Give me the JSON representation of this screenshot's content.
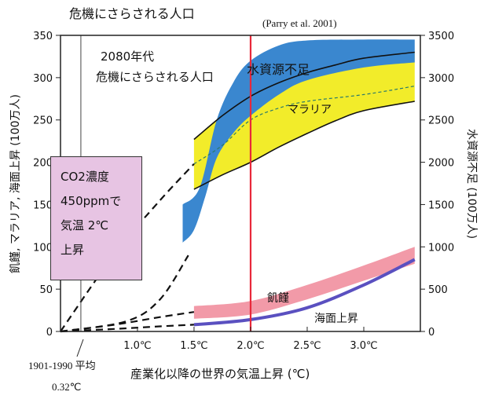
{
  "title": "危機にさらされる人口",
  "source": "(Parry et al. 2001)",
  "note_2080": [
    "2080年代",
    "危機にさらされる人口"
  ],
  "box": [
    "CO2濃度",
    "450ppmで",
    "気温 2℃",
    "上昇"
  ],
  "ylabel_left": "飢饉, マラリア, 海面上昇 (100万人)",
  "ylabel_right": "水資源不足 (100万人)",
  "xlabel": "産業化以降の世界の気温上昇 (℃)",
  "baseline_label": [
    "1901-1990 平均",
    "0.32℃"
  ],
  "colors": {
    "water": "#3a87cf",
    "malaria": "#f2ec2a",
    "hunger": "#f29aa8",
    "sea": "#5a50c0",
    "red_line": "#e8283a"
  },
  "chart_data": {
    "type": "area",
    "x_ticks": [
      "1.0℃",
      "1.5℃",
      "2.0℃",
      "2.5℃",
      "3.0℃"
    ],
    "x_tick_values": [
      1.0,
      1.5,
      2.0,
      2.5,
      3.0
    ],
    "y_left_ticks": [
      "0",
      "50",
      "100",
      "150",
      "200",
      "250",
      "300",
      "350"
    ],
    "y_right_ticks": [
      "0",
      "500",
      "1000",
      "1500",
      "2000",
      "2500",
      "3000",
      "3500"
    ],
    "xlim": [
      0.32,
      3.5
    ],
    "ylim_left": [
      0,
      350
    ],
    "ylim_right": [
      0,
      3500
    ],
    "vertical_lines": [
      0.5,
      2.0
    ],
    "series": [
      {
        "name": "水資源不足",
        "axis": "right",
        "upper": [
          [
            1.4,
            1500
          ],
          [
            1.55,
            1700
          ],
          [
            1.7,
            2500
          ],
          [
            1.85,
            2950
          ],
          [
            2.0,
            3200
          ],
          [
            2.25,
            3380
          ],
          [
            2.5,
            3440
          ],
          [
            3.0,
            3450
          ],
          [
            3.45,
            3450
          ]
        ],
        "lower": [
          [
            1.4,
            1050
          ],
          [
            1.5,
            1200
          ],
          [
            1.6,
            1600
          ],
          [
            1.7,
            2050
          ],
          [
            1.85,
            2350
          ],
          [
            2.0,
            2550
          ],
          [
            2.25,
            2800
          ],
          [
            2.5,
            2970
          ],
          [
            3.0,
            3120
          ],
          [
            3.45,
            3180
          ]
        ],
        "dashed": [
          [
            0.32,
            0
          ],
          [
            0.9,
            120
          ],
          [
            1.2,
            380
          ],
          [
            1.45,
            900
          ]
        ]
      },
      {
        "name": "マラリア",
        "axis": "left",
        "upper": [
          [
            1.5,
            227
          ],
          [
            1.75,
            255
          ],
          [
            2.0,
            278
          ],
          [
            2.25,
            294
          ],
          [
            2.5,
            306
          ],
          [
            2.75,
            315
          ],
          [
            3.0,
            323
          ],
          [
            3.45,
            330
          ]
        ],
        "lower": [
          [
            1.5,
            168
          ],
          [
            1.75,
            185
          ],
          [
            2.0,
            200
          ],
          [
            2.25,
            218
          ],
          [
            2.5,
            234
          ],
          [
            2.75,
            249
          ],
          [
            3.0,
            261
          ],
          [
            3.45,
            272
          ]
        ],
        "middle": [
          [
            1.5,
            198
          ],
          [
            1.75,
            220
          ],
          [
            2.0,
            250
          ],
          [
            2.25,
            264
          ],
          [
            2.5,
            272
          ],
          [
            3.0,
            280
          ],
          [
            3.45,
            290
          ]
        ],
        "dashed": [
          [
            0.32,
            0
          ],
          [
            0.8,
            92
          ],
          [
            1.2,
            155
          ],
          [
            1.5,
            198
          ]
        ]
      },
      {
        "name": "飢饉",
        "axis": "left",
        "upper": [
          [
            1.5,
            30
          ],
          [
            2.0,
            36
          ],
          [
            2.5,
            55
          ],
          [
            3.0,
            78
          ],
          [
            3.45,
            100
          ]
        ],
        "lower": [
          [
            1.5,
            15
          ],
          [
            2.0,
            20
          ],
          [
            2.5,
            38
          ],
          [
            3.0,
            60
          ],
          [
            3.45,
            80
          ]
        ],
        "dashed": [
          [
            0.32,
            0
          ],
          [
            0.8,
            8
          ],
          [
            1.2,
            17
          ],
          [
            1.5,
            23
          ]
        ]
      },
      {
        "name": "海面上昇",
        "axis": "left",
        "line": [
          [
            1.5,
            8
          ],
          [
            2.0,
            14
          ],
          [
            2.5,
            28
          ],
          [
            3.0,
            55
          ],
          [
            3.45,
            85
          ]
        ],
        "dashed": [
          [
            0.32,
            0
          ],
          [
            0.8,
            3
          ],
          [
            1.2,
            6
          ],
          [
            1.5,
            8
          ]
        ]
      }
    ]
  }
}
